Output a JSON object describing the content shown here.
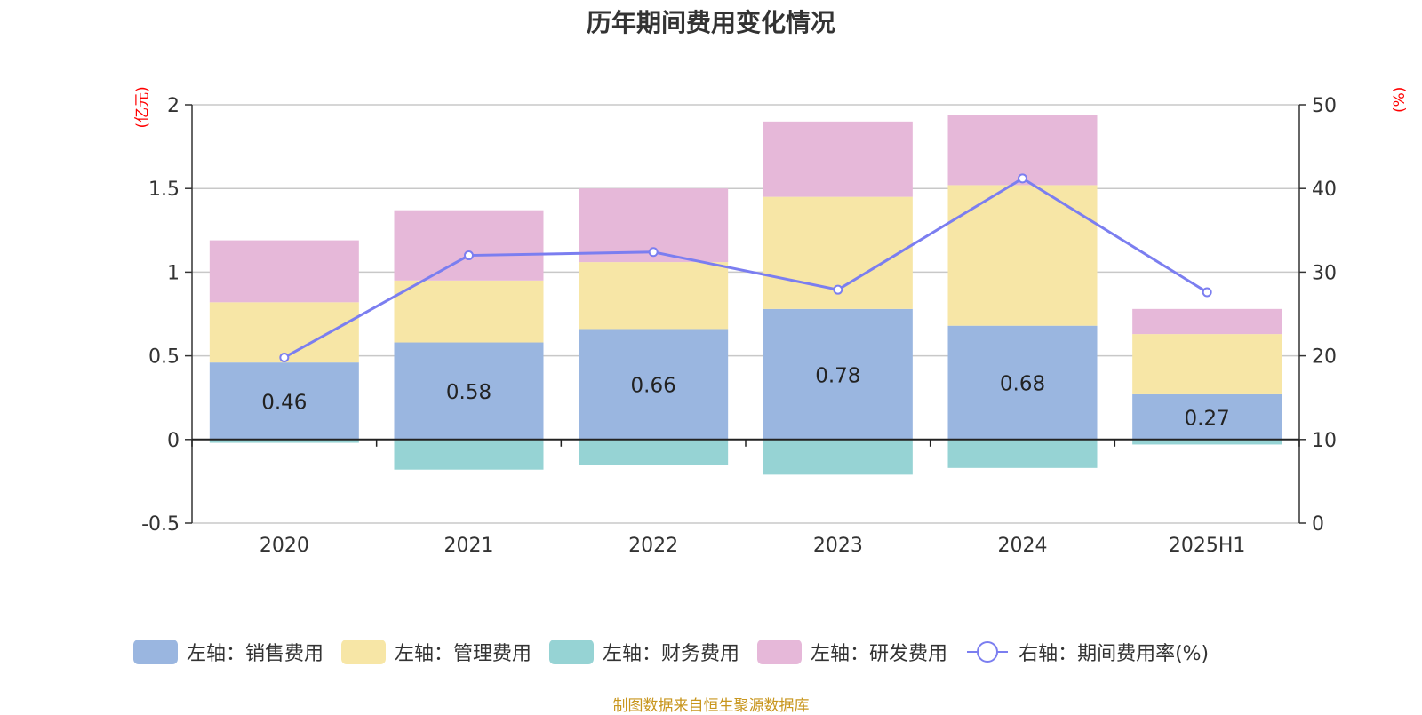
{
  "title": "历年期间费用变化情况",
  "source": "制图数据来自恒生聚源数据库",
  "colors": {
    "sales": "#9ab6e0",
    "admin": "#f7e6a6",
    "finance": "#96d3d4",
    "rd": "#e6b8d9",
    "rate": "#7b7ef0",
    "unit": "#ff0000"
  },
  "chart_data": {
    "type": "bar",
    "categories": [
      "2020",
      "2021",
      "2022",
      "2023",
      "2024",
      "2025H1"
    ],
    "series": [
      {
        "name": "左轴：销售费用",
        "axis": "left",
        "kind": "stacked-bar",
        "values": [
          0.46,
          0.58,
          0.66,
          0.78,
          0.68,
          0.27
        ]
      },
      {
        "name": "左轴：管理费用",
        "axis": "left",
        "kind": "stacked-bar",
        "values": [
          0.36,
          0.37,
          0.4,
          0.67,
          0.84,
          0.36
        ]
      },
      {
        "name": "左轴：财务费用",
        "axis": "left",
        "kind": "stacked-bar",
        "values": [
          -0.02,
          -0.18,
          -0.15,
          -0.21,
          -0.17,
          -0.03
        ]
      },
      {
        "name": "左轴：研发费用",
        "axis": "left",
        "kind": "stacked-bar",
        "values": [
          0.37,
          0.42,
          0.44,
          0.45,
          0.42,
          0.15
        ]
      },
      {
        "name": "右轴：期间费用率(%)",
        "axis": "right",
        "kind": "line",
        "values": [
          19.8,
          32.0,
          32.4,
          27.9,
          41.2,
          27.6
        ]
      }
    ],
    "data_labels": [
      "0.46",
      "0.58",
      "0.66",
      "0.78",
      "0.68",
      "0.27"
    ],
    "left_axis": {
      "unit": "(亿元)",
      "ticks": [
        "2",
        "1.5",
        "1",
        "0.5",
        "0",
        "-0.5"
      ],
      "ylim": [
        -0.5,
        2
      ]
    },
    "right_axis": {
      "unit": "(%)",
      "ticks": [
        "50",
        "40",
        "30",
        "20",
        "10",
        "0"
      ],
      "ylim": [
        0,
        50
      ]
    },
    "grid": true,
    "legend_position": "bottom"
  }
}
